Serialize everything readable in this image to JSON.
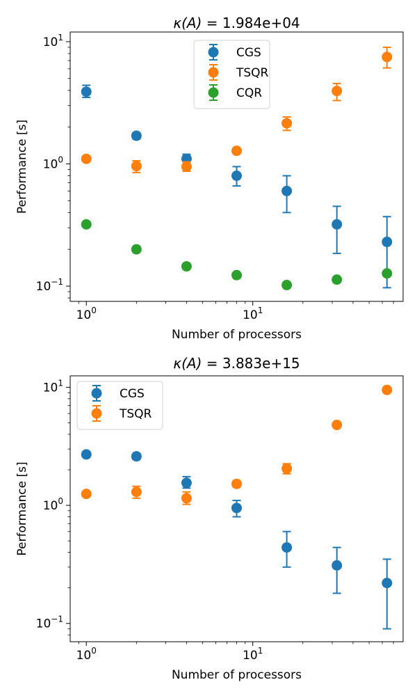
{
  "chart_data": [
    {
      "type": "scatter",
      "title_prefix": "κ(A)",
      "title_value": " = 1.984e+04",
      "xlabel": "Number of processors",
      "ylabel": "Performance [s]",
      "x_scale": "log",
      "y_scale": "log",
      "xlim": [
        0.8,
        80
      ],
      "ylim": [
        0.075,
        12
      ],
      "x_ticks": [
        {
          "value": 1,
          "base": "10",
          "exp": "0"
        },
        {
          "value": 10,
          "base": "10",
          "exp": "1"
        }
      ],
      "y_ticks": [
        {
          "value": 0.1,
          "base": "10",
          "exp": "−1"
        },
        {
          "value": 1,
          "base": "10",
          "exp": "0"
        },
        {
          "value": 10,
          "base": "10",
          "exp": "1"
        }
      ],
      "legend_position": "top-center",
      "grid": false,
      "x": [
        1,
        2,
        4,
        8,
        16,
        32,
        64
      ],
      "series": [
        {
          "name": "CGS",
          "color": "#1f77b4",
          "values": [
            3.9,
            1.7,
            1.1,
            0.8,
            0.6,
            0.32,
            0.23
          ],
          "err_low": [
            3.5,
            1.6,
            1.0,
            0.66,
            0.4,
            0.185,
            0.097
          ],
          "err_high": [
            4.4,
            1.8,
            1.2,
            0.95,
            0.8,
            0.45,
            0.37
          ]
        },
        {
          "name": "TSQR",
          "color": "#ff7f0e",
          "values": [
            1.1,
            0.96,
            0.95,
            1.28,
            2.15,
            3.95,
            7.5
          ],
          "err_low": [
            1.05,
            0.85,
            0.87,
            1.22,
            1.88,
            3.3,
            6.1
          ],
          "err_high": [
            1.15,
            1.06,
            1.04,
            1.34,
            2.42,
            4.55,
            9.0
          ]
        },
        {
          "name": "CQR",
          "color": "#2ca02c",
          "values": [
            0.32,
            0.2,
            0.145,
            0.123,
            0.102,
            0.113,
            0.127
          ],
          "err_low": [
            0.32,
            0.2,
            0.145,
            0.123,
            0.102,
            0.113,
            0.127
          ],
          "err_high": [
            0.32,
            0.2,
            0.145,
            0.123,
            0.102,
            0.113,
            0.127
          ]
        }
      ]
    },
    {
      "type": "scatter",
      "title_prefix": "κ(A)",
      "title_value": " = 3.883e+15",
      "xlabel": "Number of processors",
      "ylabel": "Performance [s]",
      "x_scale": "log",
      "y_scale": "log",
      "xlim": [
        0.8,
        80
      ],
      "ylim": [
        0.07,
        12.5
      ],
      "x_ticks": [
        {
          "value": 1,
          "base": "10",
          "exp": "0"
        },
        {
          "value": 10,
          "base": "10",
          "exp": "1"
        }
      ],
      "y_ticks": [
        {
          "value": 0.1,
          "base": "10",
          "exp": "−1"
        },
        {
          "value": 1,
          "base": "10",
          "exp": "0"
        },
        {
          "value": 10,
          "base": "10",
          "exp": "1"
        }
      ],
      "legend_position": "top-left",
      "grid": false,
      "x": [
        1,
        2,
        4,
        8,
        16,
        32,
        64
      ],
      "series": [
        {
          "name": "CGS",
          "color": "#1f77b4",
          "values": [
            2.7,
            2.6,
            1.55,
            0.95,
            0.44,
            0.31,
            0.22
          ],
          "err_low": [
            2.6,
            2.45,
            1.4,
            0.8,
            0.3,
            0.18,
            0.09
          ],
          "err_high": [
            2.8,
            2.75,
            1.75,
            1.1,
            0.6,
            0.44,
            0.35
          ]
        },
        {
          "name": "TSQR",
          "color": "#ff7f0e",
          "values": [
            1.25,
            1.3,
            1.15,
            1.52,
            2.05,
            4.8,
            9.5
          ],
          "err_low": [
            1.2,
            1.15,
            1.02,
            1.43,
            1.85,
            4.65,
            9.2
          ],
          "err_high": [
            1.3,
            1.45,
            1.3,
            1.62,
            2.25,
            4.95,
            9.8
          ]
        }
      ]
    }
  ]
}
